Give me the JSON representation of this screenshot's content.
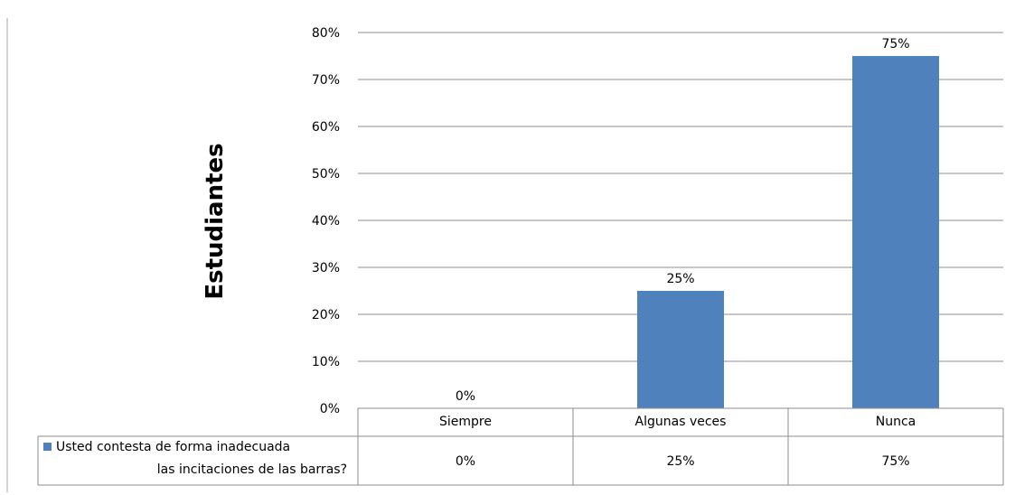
{
  "chart_data": {
    "type": "bar",
    "ylabel": "Estudiantes",
    "ylim": [
      0,
      0.8
    ],
    "yticks": [
      "0%",
      "10%",
      "20%",
      "30%",
      "40%",
      "50%",
      "60%",
      "70%",
      "80%"
    ],
    "categories": [
      "Siempre",
      "Algunas veces",
      "Nunca"
    ],
    "series": [
      {
        "name": "Usted contesta de forma inadecuada las incitaciones de las barras?",
        "name_lines": [
          "Usted contesta de forma inadecuada",
          "las incitaciones de las barras?"
        ],
        "values": [
          0,
          0.25,
          0.75
        ],
        "labels": [
          "0%",
          "25%",
          "75%"
        ],
        "color": "#4f81bd"
      }
    ],
    "grid": true,
    "data_table": true
  }
}
